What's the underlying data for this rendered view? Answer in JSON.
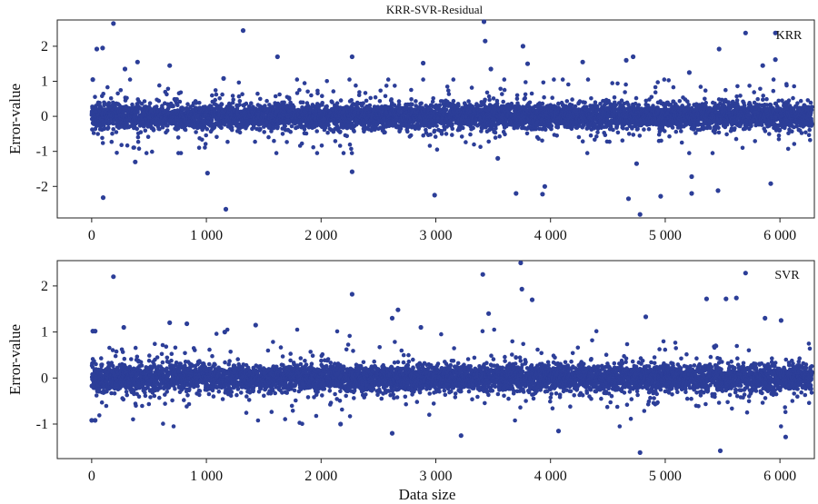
{
  "figure_title": "KRR-SVR-Residual",
  "point_color": "#2c3e98",
  "chart_data": [
    {
      "type": "scatter",
      "panel_label": "KRR",
      "xlabel": "",
      "ylabel": "Error-value",
      "xlim": [
        -300,
        6300
      ],
      "ylim": [
        -2.9,
        2.75
      ],
      "xticks": [
        0,
        1000,
        2000,
        3000,
        4000,
        5000,
        6000
      ],
      "xtick_labels": [
        "0",
        "1 000",
        "2 000",
        "3 000",
        "4 000",
        "5 000",
        "6 000"
      ],
      "yticks": [
        -2,
        -1,
        0,
        1,
        2
      ],
      "ytick_labels": [
        "-2",
        "-1",
        "0",
        "1",
        "2"
      ],
      "n_points": 6280,
      "bulk_spread": 0.32,
      "outliers": [
        {
          "x": 10,
          "y": 1.05
        },
        {
          "x": 45,
          "y": 1.92
        },
        {
          "x": 95,
          "y": 1.95
        },
        {
          "x": 190,
          "y": 2.65
        },
        {
          "x": 290,
          "y": 1.35
        },
        {
          "x": 400,
          "y": 1.55
        },
        {
          "x": 680,
          "y": 1.45
        },
        {
          "x": 1150,
          "y": 1.08
        },
        {
          "x": 1320,
          "y": 2.45
        },
        {
          "x": 1620,
          "y": 1.7
        },
        {
          "x": 2270,
          "y": 1.7
        },
        {
          "x": 2890,
          "y": 1.52
        },
        {
          "x": 3420,
          "y": 2.7
        },
        {
          "x": 3430,
          "y": 2.15
        },
        {
          "x": 3480,
          "y": 1.35
        },
        {
          "x": 3760,
          "y": 2.0
        },
        {
          "x": 3800,
          "y": 1.5
        },
        {
          "x": 4280,
          "y": 1.55
        },
        {
          "x": 4660,
          "y": 1.6
        },
        {
          "x": 4720,
          "y": 1.7
        },
        {
          "x": 5210,
          "y": 1.25
        },
        {
          "x": 5470,
          "y": 1.92
        },
        {
          "x": 5700,
          "y": 2.38
        },
        {
          "x": 5960,
          "y": 2.38
        },
        {
          "x": 5960,
          "y": 1.62
        },
        {
          "x": 5850,
          "y": 1.45
        },
        {
          "x": 100,
          "y": -2.32
        },
        {
          "x": 380,
          "y": -1.3
        },
        {
          "x": 1010,
          "y": -1.62
        },
        {
          "x": 1170,
          "y": -2.65
        },
        {
          "x": 2270,
          "y": -1.58
        },
        {
          "x": 2990,
          "y": -2.25
        },
        {
          "x": 3700,
          "y": -2.2
        },
        {
          "x": 3950,
          "y": -2.0
        },
        {
          "x": 3930,
          "y": -2.22
        },
        {
          "x": 4680,
          "y": -2.35
        },
        {
          "x": 4780,
          "y": -2.8
        },
        {
          "x": 4960,
          "y": -2.28
        },
        {
          "x": 5230,
          "y": -2.2
        },
        {
          "x": 5230,
          "y": -1.72
        },
        {
          "x": 5460,
          "y": -2.12
        },
        {
          "x": 5920,
          "y": -1.92
        },
        {
          "x": 4750,
          "y": -1.35
        },
        {
          "x": 3540,
          "y": -1.2
        }
      ]
    },
    {
      "type": "scatter",
      "panel_label": "SVR",
      "xlabel": "Data size",
      "ylabel": "Error-value",
      "xlim": [
        -300,
        6300
      ],
      "ylim": [
        -1.75,
        2.55
      ],
      "xticks": [
        0,
        1000,
        2000,
        3000,
        4000,
        5000,
        6000
      ],
      "xtick_labels": [
        "0",
        "1 000",
        "2 000",
        "3 000",
        "4 000",
        "5 000",
        "6 000"
      ],
      "yticks": [
        -1,
        0,
        1,
        2
      ],
      "ytick_labels": [
        "-1",
        "0",
        "1",
        "2"
      ],
      "n_points": 6280,
      "bulk_spread": 0.26,
      "outliers": [
        {
          "x": 10,
          "y": 1.02
        },
        {
          "x": 30,
          "y": 1.02
        },
        {
          "x": 190,
          "y": 2.2
        },
        {
          "x": 280,
          "y": 1.1
        },
        {
          "x": 680,
          "y": 1.2
        },
        {
          "x": 830,
          "y": 1.18
        },
        {
          "x": 1160,
          "y": 1.0
        },
        {
          "x": 1430,
          "y": 1.15
        },
        {
          "x": 2270,
          "y": 1.82
        },
        {
          "x": 2620,
          "y": 1.3
        },
        {
          "x": 2670,
          "y": 1.48
        },
        {
          "x": 2870,
          "y": 1.1
        },
        {
          "x": 3410,
          "y": 2.25
        },
        {
          "x": 3460,
          "y": 1.4
        },
        {
          "x": 3740,
          "y": 2.5
        },
        {
          "x": 3750,
          "y": 1.93
        },
        {
          "x": 3840,
          "y": 1.7
        },
        {
          "x": 4830,
          "y": 1.33
        },
        {
          "x": 5360,
          "y": 1.72
        },
        {
          "x": 5530,
          "y": 1.72
        },
        {
          "x": 5620,
          "y": 1.74
        },
        {
          "x": 5700,
          "y": 2.28
        },
        {
          "x": 5870,
          "y": 1.3
        },
        {
          "x": 6010,
          "y": 1.25
        },
        {
          "x": 2170,
          "y": -1.0
        },
        {
          "x": 2620,
          "y": -1.2
        },
        {
          "x": 3220,
          "y": -1.25
        },
        {
          "x": 4070,
          "y": -1.15
        },
        {
          "x": 4780,
          "y": -1.62
        },
        {
          "x": 5480,
          "y": -1.58
        },
        {
          "x": 6050,
          "y": -1.28
        },
        {
          "x": 0,
          "y": -0.92
        },
        {
          "x": 30,
          "y": -0.92
        }
      ]
    }
  ]
}
